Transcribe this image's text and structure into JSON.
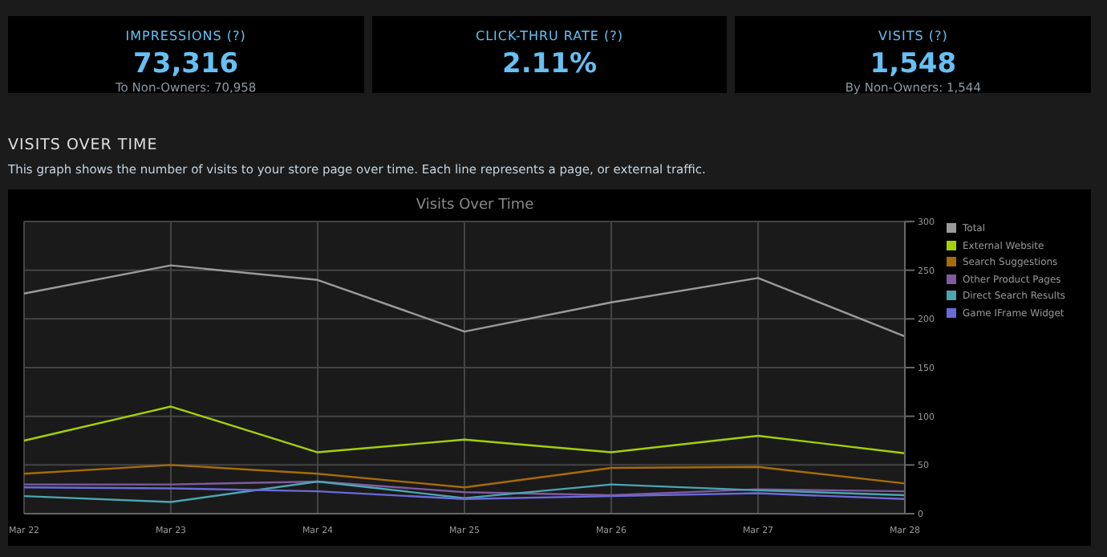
{
  "chart_data": [
    {
      "type": "other",
      "categories": [
        "IMPRESSIONS (?)",
        "CLICK-THRU RATE (?)",
        "VISITS (?)"
      ],
      "value_labels": [
        "73,316",
        "2.11%",
        "1,548"
      ],
      "annotations": [
        "To Non-Owners: 70,958",
        null,
        "By Non-Owners: 1,544"
      ]
    },
    {
      "type": "line",
      "title": "Visits Over Time",
      "annotations": [
        "VISITS OVER TIME",
        "This graph shows the number of visits to your store page over time. Each line represents a page, or external traffic."
      ],
      "categories": [
        "Mar 22",
        "Mar 23",
        "Mar 24",
        "Mar 25",
        "Mar 26",
        "Mar 27",
        "Mar 28"
      ],
      "ylim": [
        0,
        300
      ],
      "yticks": [
        0,
        50,
        100,
        150,
        200,
        250,
        300
      ],
      "grid": true,
      "legend": "top right",
      "marker": "none",
      "line_style": "solid",
      "series": [
        {
          "name": "Total",
          "color": "#9a9a9a",
          "values": [
            226,
            255,
            240,
            187,
            217,
            242,
            182
          ]
        },
        {
          "name": "External Website",
          "color": "#a4d007",
          "values": [
            75,
            110,
            63,
            76,
            63,
            80,
            62
          ]
        },
        {
          "name": "Search Suggestions",
          "color": "#a76b09",
          "values": [
            41,
            50,
            41,
            27,
            47,
            48,
            31
          ]
        },
        {
          "name": "Other Product Pages",
          "color": "#7e5aa0",
          "values": [
            30,
            30,
            33,
            22,
            19,
            25,
            23
          ]
        },
        {
          "name": "Direct Search Results",
          "color": "#4ca5b1",
          "values": [
            18,
            12,
            33,
            16,
            30,
            24,
            19
          ]
        },
        {
          "name": "Game IFrame Widget",
          "color": "#6a6ad8",
          "values": [
            27,
            26,
            23,
            15,
            18,
            21,
            15
          ]
        }
      ]
    }
  ]
}
